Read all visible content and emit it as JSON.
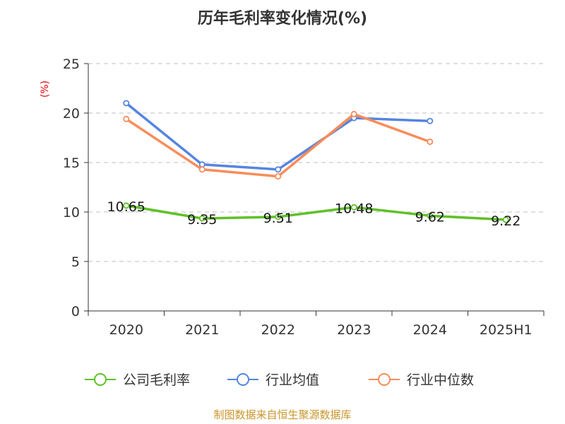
{
  "chart_data": {
    "type": "line",
    "title": "历年毛利率变化情况(%)",
    "ylabel": "(%)",
    "xlabel": "",
    "categories": [
      "2020",
      "2021",
      "2022",
      "2023",
      "2024",
      "2025H1"
    ],
    "ylim": [
      0,
      25
    ],
    "yticks": [
      0,
      5,
      10,
      15,
      20,
      25
    ],
    "grid": true,
    "legend_position": "bottom",
    "series": [
      {
        "name": "公司毛利率",
        "color": "#5fc128",
        "values": [
          10.65,
          9.35,
          9.51,
          10.48,
          9.62,
          9.22
        ],
        "labels": [
          "10.65",
          "9.35",
          "9.51",
          "10.48",
          "9.62",
          "9.22"
        ]
      },
      {
        "name": "行业均值",
        "color": "#5585e0",
        "values": [
          21.0,
          14.8,
          14.3,
          19.5,
          19.2,
          null
        ]
      },
      {
        "name": "行业中位数",
        "color": "#f98c5a",
        "values": [
          19.4,
          14.3,
          13.6,
          19.9,
          17.1,
          null
        ]
      }
    ]
  },
  "source_note": "制图数据来自恒生聚源数据库"
}
